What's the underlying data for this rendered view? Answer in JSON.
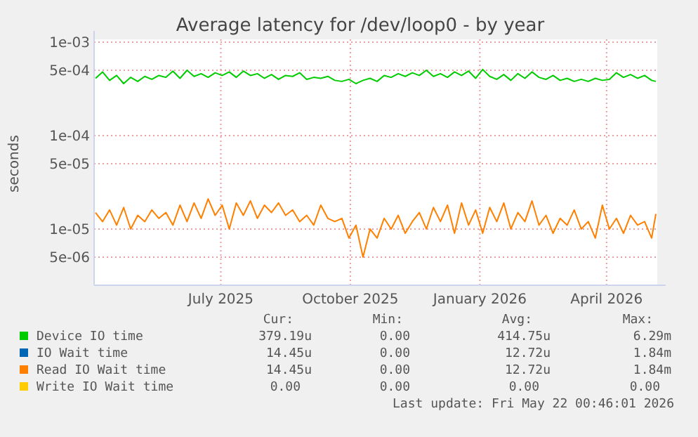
{
  "chart_data": {
    "type": "line",
    "title": "Average latency for /dev/loop0 - by year",
    "ylabel": "seconds",
    "log": "y",
    "grid": true,
    "legend": "bottom",
    "line_style": "solid",
    "xlim": [
      "2025-04-17",
      "2026-05-22"
    ],
    "xticks": [
      {
        "value": "2025-07-16",
        "label": "July 2025"
      },
      {
        "value": "2025-10-16",
        "label": "October 2025"
      },
      {
        "value": "2026-01-16",
        "label": "January 2026"
      },
      {
        "value": "2026-04-16",
        "label": "April 2026"
      }
    ],
    "ylim": [
      2.5e-06,
      0.001
    ],
    "yticks": [
      {
        "value": 5e-06,
        "label": "5e-06"
      },
      {
        "value": 1e-05,
        "label": "1e-05"
      },
      {
        "value": 5e-05,
        "label": "5e-05"
      },
      {
        "value": 0.0001,
        "label": "1e-04"
      },
      {
        "value": 0.0005,
        "label": "5e-04"
      },
      {
        "value": 0.001,
        "label": "1e-03"
      }
    ],
    "x": [
      "2025-04-18",
      "2025-04-23",
      "2025-04-28",
      "2025-05-03",
      "2025-05-08",
      "2025-05-13",
      "2025-05-18",
      "2025-05-23",
      "2025-05-28",
      "2025-06-02",
      "2025-06-07",
      "2025-06-12",
      "2025-06-17",
      "2025-06-22",
      "2025-06-27",
      "2025-07-02",
      "2025-07-07",
      "2025-07-12",
      "2025-07-17",
      "2025-07-22",
      "2025-07-27",
      "2025-08-01",
      "2025-08-06",
      "2025-08-11",
      "2025-08-16",
      "2025-08-21",
      "2025-08-26",
      "2025-08-31",
      "2025-09-05",
      "2025-09-10",
      "2025-09-15",
      "2025-09-20",
      "2025-09-25",
      "2025-09-30",
      "2025-10-05",
      "2025-10-10",
      "2025-10-15",
      "2025-10-20",
      "2025-10-25",
      "2025-10-30",
      "2025-11-04",
      "2025-11-09",
      "2025-11-14",
      "2025-11-19",
      "2025-11-24",
      "2025-11-29",
      "2025-12-04",
      "2025-12-09",
      "2025-12-14",
      "2025-12-19",
      "2025-12-24",
      "2025-12-29",
      "2026-01-03",
      "2026-01-08",
      "2026-01-13",
      "2026-01-18",
      "2026-01-23",
      "2026-01-28",
      "2026-02-02",
      "2026-02-07",
      "2026-02-12",
      "2026-02-17",
      "2026-02-22",
      "2026-02-27",
      "2026-03-04",
      "2026-03-09",
      "2026-03-14",
      "2026-03-19",
      "2026-03-24",
      "2026-03-29",
      "2026-04-03",
      "2026-04-08",
      "2026-04-13",
      "2026-04-18",
      "2026-04-23",
      "2026-04-28",
      "2026-05-03",
      "2026-05-08",
      "2026-05-13",
      "2026-05-18",
      "2026-05-21"
    ],
    "series": [
      {
        "name": "Device IO time",
        "color": "#00cc00",
        "values": [
          0.00041,
          0.00048,
          0.00039,
          0.00044,
          0.00036,
          0.00042,
          0.00038,
          0.00043,
          0.0004,
          0.00044,
          0.00042,
          0.00049,
          0.00041,
          0.0005,
          0.00043,
          0.00046,
          0.00042,
          0.00047,
          0.00044,
          0.00048,
          0.00042,
          0.00049,
          0.00044,
          0.00046,
          0.00041,
          0.00045,
          0.0004,
          0.00044,
          0.00043,
          0.00047,
          0.0004,
          0.00042,
          0.00041,
          0.00043,
          0.00039,
          0.00038,
          0.0004,
          0.00036,
          0.00039,
          0.00041,
          0.00038,
          0.00044,
          0.00042,
          0.00046,
          0.00043,
          0.00047,
          0.00044,
          0.0005,
          0.00043,
          0.00046,
          0.00042,
          0.00048,
          0.00044,
          0.00049,
          0.00041,
          0.00051,
          0.00043,
          0.0004,
          0.00045,
          0.00039,
          0.00046,
          0.00041,
          0.00048,
          0.00042,
          0.0004,
          0.00044,
          0.00039,
          0.00041,
          0.00038,
          0.0004,
          0.00038,
          0.00041,
          0.00039,
          0.0004,
          0.00047,
          0.00042,
          0.00045,
          0.00041,
          0.00044,
          0.00039,
          0.00038
        ]
      },
      {
        "name": "IO Wait time",
        "color": "#0066b3",
        "values": [
          null,
          null,
          null,
          null,
          null,
          null,
          null,
          null,
          null,
          null,
          null,
          null,
          null,
          null,
          null,
          null,
          null,
          null,
          null,
          null,
          null,
          null,
          null,
          null,
          null,
          null,
          null,
          null,
          null,
          null,
          null,
          null,
          null,
          null,
          null,
          null,
          null,
          null,
          null,
          null,
          null,
          null,
          null,
          null,
          null,
          null,
          null,
          null,
          null,
          null,
          null,
          null,
          null,
          null,
          null,
          null,
          null,
          null,
          null,
          null,
          null,
          null,
          null,
          null,
          null,
          null,
          null,
          null,
          null,
          null,
          null,
          null,
          null,
          null,
          null,
          null,
          null,
          null,
          null,
          null,
          null
        ]
      },
      {
        "name": "Read IO Wait time",
        "color": "#ff8000",
        "values": [
          1.5e-05,
          1.2e-05,
          1.6e-05,
          1.1e-05,
          1.7e-05,
          1e-05,
          1.4e-05,
          1.2e-05,
          1.6e-05,
          1.3e-05,
          1.5e-05,
          1.1e-05,
          1.8e-05,
          1.2e-05,
          1.9e-05,
          1.3e-05,
          2.1e-05,
          1.4e-05,
          1.8e-05,
          1e-05,
          1.9e-05,
          1.4e-05,
          2e-05,
          1.3e-05,
          1.8e-05,
          1.5e-05,
          1.9e-05,
          1.4e-05,
          1.6e-05,
          1.2e-05,
          1.4e-05,
          1.1e-05,
          1.8e-05,
          1.3e-05,
          1.2e-05,
          1.3e-05,
          8e-06,
          1.1e-05,
          5e-06,
          1e-05,
          8e-06,
          1.3e-05,
          1e-05,
          1.4e-05,
          9e-06,
          1.2e-05,
          1.5e-05,
          1e-05,
          1.7e-05,
          1.2e-05,
          1.8e-05,
          9e-06,
          1.9e-05,
          1.1e-05,
          1.6e-05,
          9e-06,
          1.7e-05,
          1.2e-05,
          1.9e-05,
          1e-05,
          1.5e-05,
          1.2e-05,
          2e-05,
          1.1e-05,
          1.4e-05,
          9e-06,
          1.3e-05,
          1.1e-05,
          1.6e-05,
          1e-05,
          1.2e-05,
          8e-06,
          1.8e-05,
          1e-05,
          1.3e-05,
          9e-06,
          1.4e-05,
          1.1e-05,
          1.2e-05,
          8e-06,
          1.45e-05
        ]
      },
      {
        "name": "Write IO Wait time",
        "color": "#ffcc00",
        "values": [
          null,
          null,
          null,
          null,
          null,
          null,
          null,
          null,
          null,
          null,
          null,
          null,
          null,
          null,
          null,
          null,
          null,
          null,
          null,
          null,
          null,
          null,
          null,
          null,
          null,
          null,
          null,
          null,
          null,
          null,
          null,
          null,
          null,
          null,
          null,
          null,
          null,
          null,
          null,
          null,
          null,
          null,
          null,
          null,
          null,
          null,
          null,
          null,
          null,
          null,
          null,
          null,
          null,
          null,
          null,
          null,
          null,
          null,
          null,
          null,
          null,
          null,
          null,
          null,
          null,
          null,
          null,
          null,
          null,
          null,
          null,
          null,
          null,
          null,
          null,
          null,
          null,
          null,
          null,
          null,
          null
        ]
      }
    ],
    "annotations": [
      "Cur:",
      "Min:",
      "Avg:",
      "Max:",
      "379.19u",
      "0.00",
      "414.75u",
      "6.29m",
      "14.45u",
      "0.00",
      "12.72u",
      "1.84m",
      "14.45u",
      "0.00",
      "12.72u",
      "1.84m",
      "0.00",
      "0.00",
      "0.00",
      "0.00",
      "Last update: Fri May 22 00:46:01 2026"
    ]
  }
}
